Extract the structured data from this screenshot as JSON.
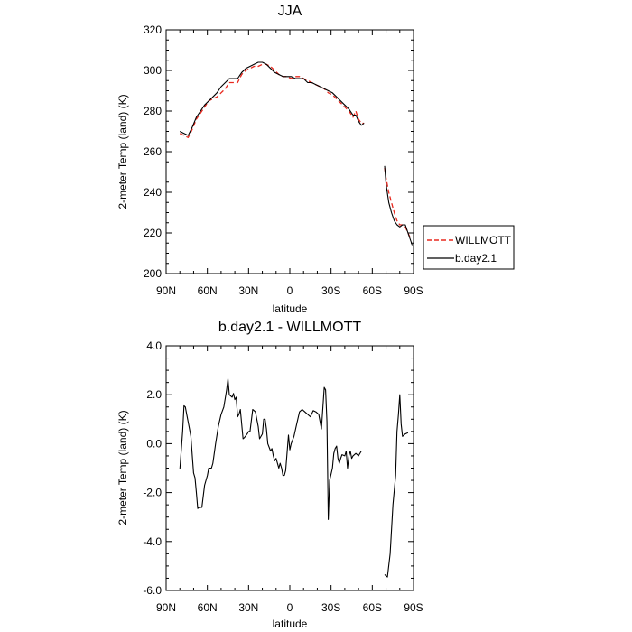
{
  "chart_data": [
    {
      "type": "line",
      "title": "JJA",
      "xlabel": "latitude",
      "ylabel": "2-meter Temp (land) (K)",
      "xlim": [
        90,
        -90
      ],
      "ylim": [
        200,
        320
      ],
      "xticks": [
        90,
        60,
        30,
        0,
        -30,
        -60,
        -90
      ],
      "xtick_labels": [
        "90N",
        "60N",
        "30N",
        "0",
        "30S",
        "60S",
        "90S"
      ],
      "yticks": [
        200,
        220,
        240,
        260,
        280,
        300,
        320
      ],
      "ytick_labels": [
        "200",
        "220",
        "240",
        "260",
        "280",
        "300",
        "320"
      ],
      "legend_position": "right",
      "grid": false,
      "series": [
        {
          "name": "WILLMOTT",
          "color": "#e8281e",
          "dash": "dashed",
          "segments": [
            [
              [
                80,
                269
              ],
              [
                77,
                268
              ],
              [
                74,
                267
              ],
              [
                71,
                271
              ],
              [
                68,
                276
              ],
              [
                65,
                279
              ],
              [
                62,
                282
              ],
              [
                59,
                285
              ],
              [
                56,
                286
              ],
              [
                53,
                287
              ],
              [
                50,
                289
              ],
              [
                47,
                291
              ],
              [
                44,
                294
              ],
              [
                41,
                294
              ],
              [
                38,
                294
              ],
              [
                35,
                298
              ],
              [
                32,
                300
              ],
              [
                29,
                301
              ],
              [
                26,
                302
              ],
              [
                23,
                302
              ],
              [
                20,
                303
              ],
              [
                17,
                303
              ],
              [
                14,
                302
              ],
              [
                11,
                300
              ],
              [
                8,
                298
              ],
              [
                5,
                297
              ],
              [
                2,
                297
              ],
              [
                -1,
                296
              ],
              [
                -4,
                297
              ],
              [
                -7,
                297
              ],
              [
                -10,
                296
              ],
              [
                -13,
                295
              ],
              [
                -16,
                294
              ],
              [
                -19,
                293
              ],
              [
                -22,
                292
              ],
              [
                -25,
                291
              ],
              [
                -28,
                289
              ],
              [
                -31,
                288
              ],
              [
                -34,
                286
              ],
              [
                -37,
                284
              ],
              [
                -40,
                282
              ],
              [
                -43,
                280
              ],
              [
                -46,
                277
              ],
              [
                -48,
                280
              ],
              [
                -50,
                276
              ],
              [
                -52,
                274
              ],
              [
                -54,
                274
              ]
            ],
            [
              [
                -69,
                252
              ],
              [
                -70,
                247
              ],
              [
                -72,
                240
              ],
              [
                -74,
                235
              ],
              [
                -76,
                230
              ],
              [
                -78,
                226
              ],
              [
                -80,
                224
              ],
              [
                -82,
                224
              ],
              [
                -84,
                223
              ],
              [
                -86,
                220
              ],
              [
                -88,
                217
              ]
            ]
          ]
        },
        {
          "name": "b.day2.1",
          "color": "#000000",
          "dash": "solid",
          "segments": [
            [
              [
                80,
                270
              ],
              [
                77,
                269
              ],
              [
                74,
                268
              ],
              [
                71,
                272
              ],
              [
                68,
                277
              ],
              [
                65,
                280
              ],
              [
                62,
                283
              ],
              [
                59,
                285
              ],
              [
                56,
                287
              ],
              [
                53,
                289
              ],
              [
                50,
                292
              ],
              [
                47,
                294
              ],
              [
                44,
                296
              ],
              [
                41,
                296
              ],
              [
                38,
                296
              ],
              [
                35,
                299
              ],
              [
                32,
                301
              ],
              [
                29,
                302
              ],
              [
                26,
                303
              ],
              [
                23,
                304
              ],
              [
                20,
                304
              ],
              [
                17,
                303
              ],
              [
                14,
                301
              ],
              [
                11,
                299
              ],
              [
                8,
                298
              ],
              [
                5,
                297
              ],
              [
                2,
                297
              ],
              [
                -1,
                297
              ],
              [
                -4,
                296
              ],
              [
                -7,
                296
              ],
              [
                -10,
                296
              ],
              [
                -13,
                294
              ],
              [
                -16,
                294
              ],
              [
                -19,
                293
              ],
              [
                -22,
                292
              ],
              [
                -25,
                291
              ],
              [
                -28,
                290
              ],
              [
                -31,
                289
              ],
              [
                -34,
                287
              ],
              [
                -37,
                285
              ],
              [
                -40,
                283
              ],
              [
                -43,
                281
              ],
              [
                -46,
                278
              ],
              [
                -48,
                278
              ],
              [
                -50,
                275
              ],
              [
                -52,
                273
              ],
              [
                -54,
                274
              ]
            ],
            [
              [
                -69,
                253
              ],
              [
                -70,
                244
              ],
              [
                -72,
                235
              ],
              [
                -74,
                230
              ],
              [
                -76,
                226
              ],
              [
                -78,
                224
              ],
              [
                -80,
                223
              ],
              [
                -82,
                224
              ],
              [
                -84,
                224
              ],
              [
                -86,
                220
              ],
              [
                -88,
                216
              ],
              [
                -89,
                214
              ]
            ]
          ]
        }
      ]
    },
    {
      "type": "line",
      "title": "b.day2.1 - WILLMOTT",
      "xlabel": "latitude",
      "ylabel": "2-meter Temp (land) (K)",
      "xlim": [
        90,
        -90
      ],
      "ylim": [
        -6,
        4
      ],
      "xticks": [
        90,
        60,
        30,
        0,
        -30,
        -60,
        -90
      ],
      "xtick_labels": [
        "90N",
        "60N",
        "30N",
        "0",
        "30S",
        "60S",
        "90S"
      ],
      "yticks": [
        -6,
        -4,
        -2,
        0,
        2,
        4
      ],
      "ytick_labels": [
        "-6.0",
        "-4.0",
        "-2.0",
        "0.0",
        "2.0",
        "4.0"
      ],
      "grid": false,
      "series": [
        {
          "color": "#000000",
          "dash": "solid",
          "segments": [
            [
              [
                80,
                -1.05
              ],
              [
                78,
                0.5
              ],
              [
                77,
                1.55
              ],
              [
                76,
                1.5
              ],
              [
                75,
                1.2
              ],
              [
                73,
                0.6
              ],
              [
                72,
                0.3
              ],
              [
                70,
                -1.2
              ],
              [
                69,
                -1.4
              ],
              [
                68,
                -2.0
              ],
              [
                67,
                -2.65
              ],
              [
                66,
                -2.6
              ],
              [
                64,
                -2.6
              ],
              [
                62,
                -1.7
              ],
              [
                60,
                -1.3
              ],
              [
                59,
                -1.0
              ],
              [
                57,
                -1.0
              ],
              [
                56,
                -0.8
              ],
              [
                54,
                0.0
              ],
              [
                52,
                0.7
              ],
              [
                50,
                1.2
              ],
              [
                48,
                1.5
              ],
              [
                46,
                2.2
              ],
              [
                45,
                2.65
              ],
              [
                44,
                2.0
              ],
              [
                43,
                1.95
              ],
              [
                42,
                1.9
              ],
              [
                41,
                2.05
              ],
              [
                40,
                1.8
              ],
              [
                39,
                1.9
              ],
              [
                38,
                1.1
              ],
              [
                37,
                1.2
              ],
              [
                36,
                1.4
              ],
              [
                34,
                0.2
              ],
              [
                33,
                0.25
              ],
              [
                31,
                0.4
              ],
              [
                30,
                0.5
              ],
              [
                29,
                0.5
              ],
              [
                27,
                1.4
              ],
              [
                26,
                1.35
              ],
              [
                25,
                1.3
              ],
              [
                23,
                0.7
              ],
              [
                22,
                0.2
              ],
              [
                20,
                0.4
              ],
              [
                19,
                1.0
              ],
              [
                18,
                1.0
              ],
              [
                17,
                0.6
              ],
              [
                16,
                0.0
              ],
              [
                14,
                -0.3
              ],
              [
                13,
                -0.2
              ],
              [
                12,
                -0.5
              ],
              [
                11,
                -0.7
              ],
              [
                10,
                -0.6
              ],
              [
                8,
                -1.0
              ],
              [
                7,
                -0.8
              ],
              [
                6,
                -1.0
              ],
              [
                5,
                -1.3
              ],
              [
                4,
                -1.3
              ],
              [
                3,
                -1.1
              ],
              [
                1,
                0.35
              ],
              [
                0,
                -0.25
              ],
              [
                -1,
                0.0
              ],
              [
                -3,
                0.3
              ],
              [
                -5,
                0.8
              ],
              [
                -7,
                1.3
              ],
              [
                -9,
                1.4
              ],
              [
                -11,
                1.3
              ],
              [
                -13,
                1.2
              ],
              [
                -15,
                1.1
              ],
              [
                -17,
                1.35
              ],
              [
                -19,
                1.3
              ],
              [
                -21,
                1.2
              ],
              [
                -22,
                0.9
              ],
              [
                -23,
                0.6
              ],
              [
                -25,
                2.3
              ],
              [
                -26,
                2.2
              ],
              [
                -27,
                0.9
              ],
              [
                -28,
                -3.1
              ],
              [
                -29,
                -1.5
              ],
              [
                -31,
                -1.0
              ],
              [
                -32,
                -0.4
              ],
              [
                -33,
                -0.2
              ],
              [
                -34,
                -0.1
              ],
              [
                -35,
                -0.6
              ],
              [
                -36,
                -0.8
              ],
              [
                -37,
                -0.6
              ],
              [
                -38,
                -0.45
              ],
              [
                -40,
                -0.5
              ],
              [
                -41,
                -0.3
              ],
              [
                -42,
                -1.0
              ],
              [
                -43,
                -0.5
              ],
              [
                -44,
                -0.3
              ],
              [
                -45,
                -0.6
              ],
              [
                -46,
                -0.5
              ],
              [
                -48,
                -0.4
              ],
              [
                -50,
                -0.5
              ],
              [
                -52,
                -0.3
              ]
            ],
            [
              [
                -69,
                -5.35
              ],
              [
                -71,
                -5.45
              ],
              [
                -73,
                -4.5
              ],
              [
                -75,
                -2.5
              ],
              [
                -77,
                -1.3
              ],
              [
                -78,
                0.5
              ],
              [
                -79,
                1.2
              ],
              [
                -80,
                2.0
              ],
              [
                -81,
                0.8
              ],
              [
                -82,
                0.3
              ],
              [
                -84,
                0.4
              ],
              [
                -86,
                0.45
              ]
            ]
          ]
        }
      ]
    }
  ]
}
